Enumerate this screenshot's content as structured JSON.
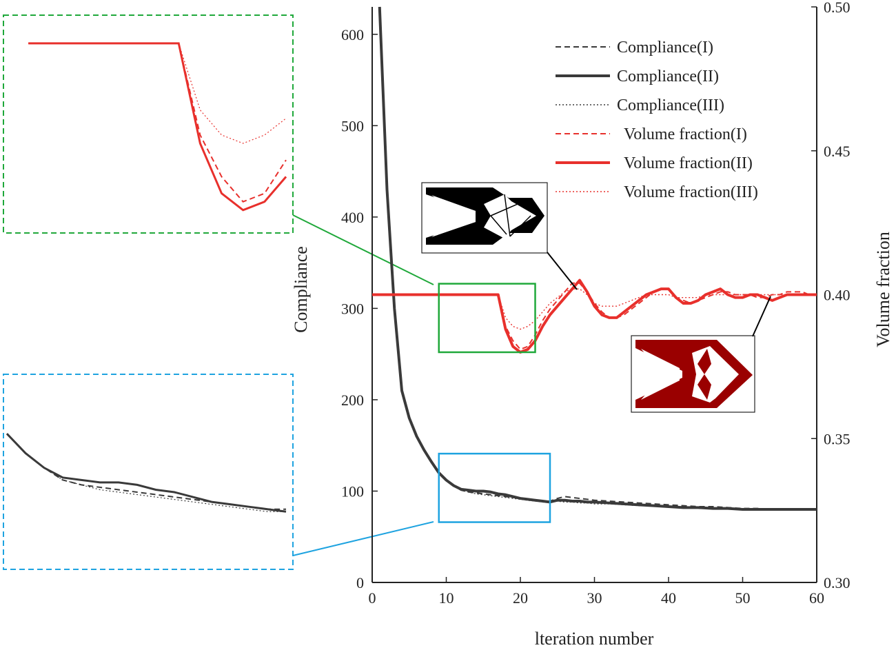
{
  "chart_data": {
    "type": "line",
    "xlabel": "lteration number",
    "ylabel": "Compliance",
    "ylabel_right": "Volume fraction",
    "xlim": [
      0,
      60
    ],
    "ylim": [
      0,
      630
    ],
    "ylim_right": [
      0.3,
      0.5
    ],
    "x_ticks": [
      "0",
      "10",
      "20",
      "30",
      "40",
      "50",
      "60"
    ],
    "y_ticks": [
      "0",
      "100",
      "200",
      "300",
      "400",
      "500",
      "600"
    ],
    "y_right_ticks": [
      "0.30",
      "0.35",
      "0.40",
      "0.45",
      "0.50"
    ],
    "colors": {
      "compliance": "#3a3a3a",
      "volume": "#e8302c",
      "zoom_green": "#1fa83a",
      "zoom_blue": "#1ea3e0",
      "structure_black": "#000000",
      "structure_red": "#9a0000"
    },
    "series": [
      {
        "name": "Compliance(I)",
        "axis": "left",
        "style": "dashed",
        "x": [
          1,
          2,
          3,
          4,
          5,
          6,
          7,
          8,
          9,
          10,
          11,
          12,
          13,
          14,
          15,
          16,
          17,
          18,
          19,
          20,
          21,
          22,
          23,
          24,
          25,
          26,
          27,
          28,
          29,
          30,
          32,
          34,
          36,
          38,
          40,
          42,
          44,
          46,
          48,
          50,
          52,
          54,
          56,
          58,
          60
        ],
        "values": [
          630,
          430,
          300,
          210,
          180,
          160,
          145,
          132,
          120,
          112,
          106,
          101,
          99,
          98,
          97,
          96,
          95,
          94,
          93,
          92,
          91,
          90,
          89,
          89,
          92,
          94,
          93,
          92,
          91,
          90,
          89,
          88,
          87,
          86,
          85,
          84,
          83,
          83,
          82,
          81,
          81,
          80,
          80,
          80,
          80
        ]
      },
      {
        "name": "Compliance(II)",
        "axis": "left",
        "style": "solid",
        "x": [
          1,
          2,
          3,
          4,
          5,
          6,
          7,
          8,
          9,
          10,
          11,
          12,
          13,
          14,
          15,
          16,
          17,
          18,
          19,
          20,
          21,
          22,
          23,
          24,
          25,
          26,
          27,
          28,
          29,
          30,
          32,
          34,
          36,
          38,
          40,
          42,
          44,
          46,
          48,
          50,
          52,
          54,
          56,
          58,
          60
        ],
        "values": [
          630,
          430,
          300,
          210,
          180,
          160,
          145,
          132,
          120,
          112,
          106,
          102,
          101,
          100,
          100,
          99,
          97,
          96,
          94,
          92,
          91,
          90,
          89,
          88,
          90,
          90,
          89,
          89,
          88,
          88,
          87,
          86,
          85,
          84,
          83,
          82,
          82,
          81,
          81,
          80,
          80,
          80,
          80,
          80,
          80
        ]
      },
      {
        "name": "Compliance(III)",
        "axis": "left",
        "style": "dotted",
        "x": [
          1,
          2,
          3,
          4,
          5,
          6,
          7,
          8,
          9,
          10,
          11,
          12,
          13,
          14,
          15,
          16,
          17,
          18,
          19,
          20,
          21,
          22,
          23,
          24,
          25,
          26,
          27,
          28,
          29,
          30,
          32,
          34,
          36,
          38,
          40,
          42,
          44,
          46,
          48,
          50,
          52,
          54,
          56,
          58,
          60
        ],
        "values": [
          630,
          430,
          300,
          210,
          180,
          160,
          145,
          132,
          120,
          112,
          106,
          101,
          99,
          97,
          96,
          95,
          94,
          93,
          92,
          91,
          90,
          89,
          88,
          88,
          89,
          88,
          88,
          87,
          87,
          86,
          86,
          85,
          84,
          84,
          83,
          82,
          82,
          81,
          81,
          80,
          80,
          80,
          80,
          80,
          80
        ]
      },
      {
        "name": "Volume fraction(I)",
        "axis": "right",
        "style": "dashed",
        "x": [
          0,
          2,
          4,
          6,
          8,
          10,
          12,
          14,
          16,
          17,
          18,
          19,
          20,
          21,
          22,
          23,
          24,
          25,
          26,
          27,
          28,
          29,
          30,
          31,
          32,
          33,
          34,
          35,
          36,
          37,
          38,
          39,
          40,
          41,
          42,
          43,
          44,
          45,
          46,
          47,
          48,
          49,
          50,
          51,
          52,
          53,
          54,
          55,
          56,
          57,
          58,
          59,
          60
        ],
        "values": [
          0.4,
          0.4,
          0.4,
          0.4,
          0.4,
          0.4,
          0.4,
          0.4,
          0.4,
          0.4,
          0.389,
          0.384,
          0.381,
          0.382,
          0.386,
          0.391,
          0.395,
          0.398,
          0.401,
          0.404,
          0.404,
          0.401,
          0.397,
          0.394,
          0.392,
          0.392,
          0.393,
          0.395,
          0.397,
          0.399,
          0.401,
          0.402,
          0.402,
          0.399,
          0.398,
          0.397,
          0.398,
          0.399,
          0.4,
          0.401,
          0.401,
          0.4,
          0.4,
          0.4,
          0.399,
          0.399,
          0.4,
          0.4,
          0.401,
          0.401,
          0.401,
          0.4,
          0.4
        ]
      },
      {
        "name": "Volume fraction(II)",
        "axis": "right",
        "style": "solid",
        "x": [
          0,
          2,
          4,
          6,
          8,
          10,
          12,
          14,
          16,
          17,
          18,
          19,
          20,
          21,
          22,
          23,
          24,
          25,
          26,
          27,
          28,
          29,
          30,
          31,
          32,
          33,
          34,
          35,
          36,
          37,
          38,
          39,
          40,
          41,
          42,
          43,
          44,
          45,
          46,
          47,
          48,
          49,
          50,
          51,
          52,
          53,
          54,
          55,
          56,
          57,
          58,
          59,
          60
        ],
        "values": [
          0.4,
          0.4,
          0.4,
          0.4,
          0.4,
          0.4,
          0.4,
          0.4,
          0.4,
          0.4,
          0.388,
          0.382,
          0.38,
          0.381,
          0.384,
          0.389,
          0.393,
          0.396,
          0.399,
          0.402,
          0.405,
          0.401,
          0.396,
          0.393,
          0.392,
          0.392,
          0.394,
          0.396,
          0.398,
          0.4,
          0.401,
          0.402,
          0.402,
          0.399,
          0.397,
          0.397,
          0.398,
          0.4,
          0.401,
          0.402,
          0.4,
          0.399,
          0.399,
          0.4,
          0.4,
          0.399,
          0.398,
          0.399,
          0.4,
          0.4,
          0.4,
          0.4,
          0.4
        ]
      },
      {
        "name": "Volume fraction(III)",
        "axis": "right",
        "style": "dotted",
        "x": [
          0,
          2,
          4,
          6,
          8,
          10,
          12,
          14,
          16,
          17,
          18,
          19,
          20,
          21,
          22,
          23,
          24,
          25,
          26,
          27,
          28,
          29,
          30,
          31,
          32,
          33,
          34,
          35,
          36,
          37,
          38,
          39,
          40,
          41,
          42,
          43,
          44,
          45,
          46,
          47,
          48,
          49,
          50,
          51,
          52,
          53,
          54,
          55,
          56,
          57,
          58,
          59,
          60
        ],
        "values": [
          0.4,
          0.4,
          0.4,
          0.4,
          0.4,
          0.4,
          0.4,
          0.4,
          0.4,
          0.4,
          0.392,
          0.389,
          0.388,
          0.389,
          0.391,
          0.394,
          0.397,
          0.399,
          0.401,
          0.402,
          0.402,
          0.4,
          0.397,
          0.396,
          0.396,
          0.396,
          0.397,
          0.398,
          0.399,
          0.4,
          0.4,
          0.4,
          0.4,
          0.399,
          0.399,
          0.399,
          0.399,
          0.4,
          0.4,
          0.4,
          0.4,
          0.4,
          0.4,
          0.4,
          0.4,
          0.4,
          0.4,
          0.4,
          0.4,
          0.4,
          0.4,
          0.4,
          0.4
        ]
      }
    ],
    "zoom_boxes": [
      {
        "name": "volume-zoom",
        "color": "green",
        "x_range": [
          9,
          22
        ],
        "y_range": [
          252,
          327
        ]
      },
      {
        "name": "compliance-zoom",
        "color": "blue",
        "x_range": [
          9,
          24
        ],
        "y_range": [
          66,
          141
        ]
      }
    ]
  }
}
